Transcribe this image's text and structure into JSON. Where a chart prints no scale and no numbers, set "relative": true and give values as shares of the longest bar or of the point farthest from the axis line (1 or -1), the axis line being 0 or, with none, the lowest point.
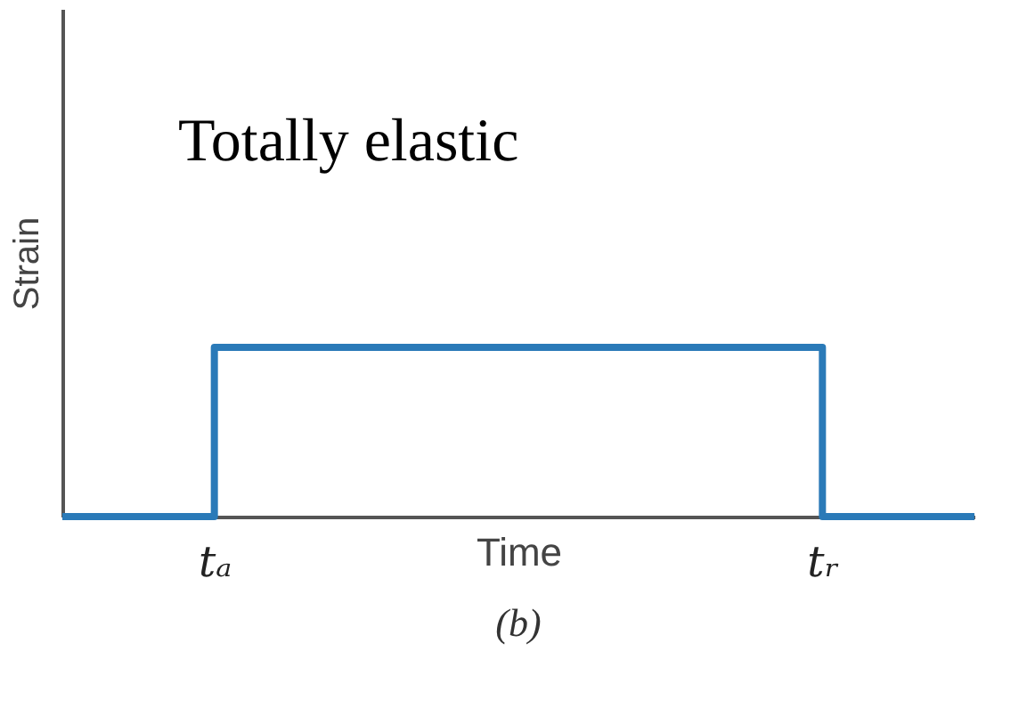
{
  "chart_data": {
    "type": "step",
    "relative": true,
    "xlabel": "Time",
    "ylabel": "Strain",
    "annotations": [
      "Totally elastic",
      "(b)"
    ],
    "categories": [
      null,
      "tₐ",
      null,
      null,
      null,
      "tᵣ",
      null
    ],
    "tick_labels": "x",
    "series": [
      {
        "color": "#2a7ab8",
        "values": [
          0,
          1,
          1,
          1,
          1,
          0,
          0
        ]
      }
    ]
  }
}
